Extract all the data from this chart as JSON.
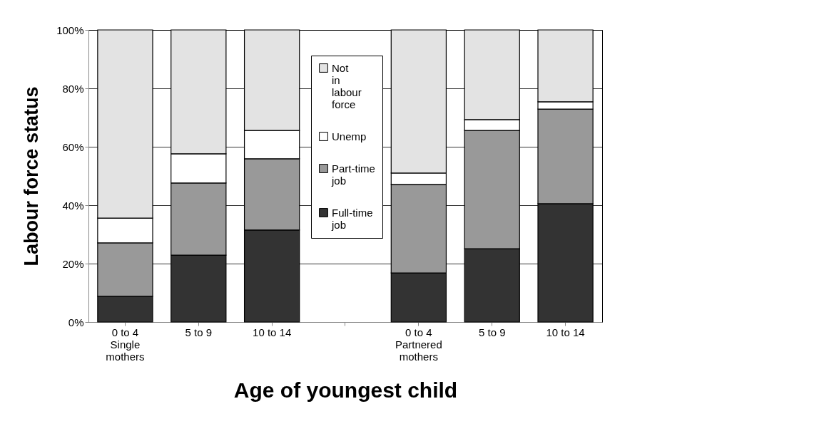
{
  "chart_data": {
    "type": "bar",
    "stacked": true,
    "xlabel": "Age of youngest child",
    "ylabel": "Labour force status",
    "categories": [
      "0 to 4\nSingle\nmothers",
      "5 to 9",
      "10 to 14",
      null,
      "0 to 4\nPartnered\nmothers",
      "5 to 9",
      "10 to 14"
    ],
    "series": [
      {
        "name": "Full-time job",
        "color": "#333333",
        "values": [
          8.8,
          22.9,
          31.5,
          null,
          16.8,
          25.1,
          40.5
        ]
      },
      {
        "name": "Part-time job",
        "color": "#999999",
        "values": [
          18.3,
          24.7,
          24.4,
          null,
          30.3,
          40.5,
          32.4
        ]
      },
      {
        "name": "Unemp",
        "color": "#ffffff",
        "values": [
          8.5,
          10.0,
          9.7,
          null,
          3.9,
          3.7,
          2.5
        ]
      },
      {
        "name": "Not in labour force",
        "color": "#e3e3e3",
        "values": [
          64.4,
          42.4,
          34.4,
          null,
          49.0,
          30.7,
          24.6
        ]
      }
    ],
    "ylim": [
      0,
      100
    ],
    "yticks": [
      {
        "value": 0,
        "label": "0%"
      },
      {
        "value": 20,
        "label": "20%"
      },
      {
        "value": 40,
        "label": "40%"
      },
      {
        "value": 60,
        "label": "60%"
      },
      {
        "value": 80,
        "label": "80%"
      },
      {
        "value": 100,
        "label": "100%"
      }
    ],
    "grid": "y",
    "legend": "top"
  }
}
